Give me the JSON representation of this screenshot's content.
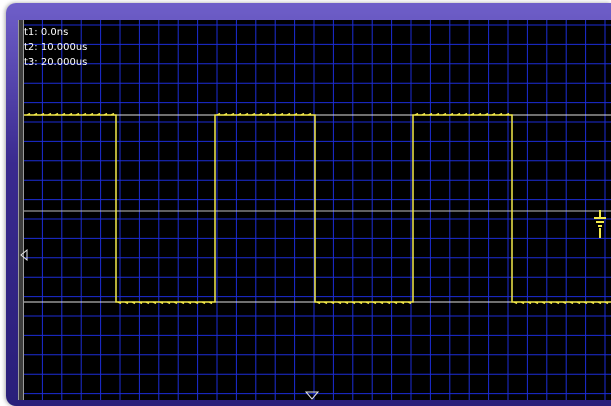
{
  "cursors": {
    "t1": "t1: 0.0ns",
    "t2": "t2: 10.000us",
    "t3": "t3: 20.000us"
  },
  "colors": {
    "grid": "#1c2dd6",
    "trace": "#f3e94a",
    "screen_bg": "#000000",
    "frame": "#4a3aa8"
  },
  "icons": {
    "trigger_position": "triangle-down-icon",
    "trigger_level": "triangle-left-icon",
    "ground_reference": "ground-icon"
  },
  "signal": {
    "type": "square-wave",
    "levels": [
      "high",
      "low"
    ],
    "transitions_us": [
      0.0,
      10.0,
      20.0
    ]
  }
}
